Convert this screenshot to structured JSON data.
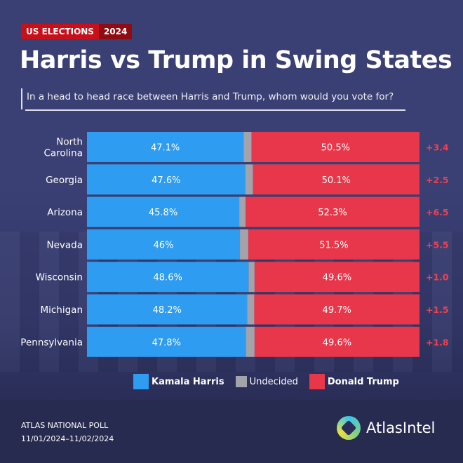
{
  "badge": {
    "label": "US ELECTIONS",
    "year": "2024"
  },
  "title": "Harris vs Trump in Swing States",
  "subtitle": "In a head to head race between Harris and Trump, whom would you vote for?",
  "colors": {
    "harris": "#2e9cf0",
    "undecided": "#a3a3ab",
    "trump": "#e8374a",
    "margin": "#f0404f"
  },
  "chart_data": {
    "type": "bar",
    "stacked": true,
    "orientation": "horizontal",
    "categories": [
      "North Carolina",
      "Georgia",
      "Arizona",
      "Nevada",
      "Wisconsin",
      "Michigan",
      "Pennsylvania"
    ],
    "series": [
      {
        "name": "Kamala Harris",
        "values": [
          47.1,
          47.6,
          45.8,
          46,
          48.6,
          48.2,
          47.8
        ],
        "labels": [
          "47.1%",
          "47.6%",
          "45.8%",
          "46%",
          "48.6%",
          "48.2%",
          "47.8%"
        ]
      },
      {
        "name": "Undecided",
        "values": [
          2.4,
          2.3,
          1.9,
          2.5,
          1.8,
          2.1,
          2.6
        ]
      },
      {
        "name": "Donald Trump",
        "values": [
          50.5,
          50.1,
          52.3,
          51.5,
          49.6,
          49.7,
          49.6
        ],
        "labels": [
          "50.5%",
          "50.1%",
          "52.3%",
          "51.5%",
          "49.6%",
          "49.7%",
          "49.6%"
        ]
      }
    ],
    "margins": [
      "+3.4",
      "+2.5",
      "+6.5",
      "+5.5",
      "+1.0",
      "+1.5",
      "+1.8"
    ],
    "xlim": [
      0,
      100
    ],
    "legend": "bottom"
  },
  "legend": {
    "harris": "Kamala Harris",
    "undecided": "Undecided",
    "trump": "Donald Trump"
  },
  "footer": {
    "poll": "ATLAS NATIONAL POLL",
    "dates": "11/01/2024–11/02/2024"
  },
  "logo": "AtlasIntel"
}
